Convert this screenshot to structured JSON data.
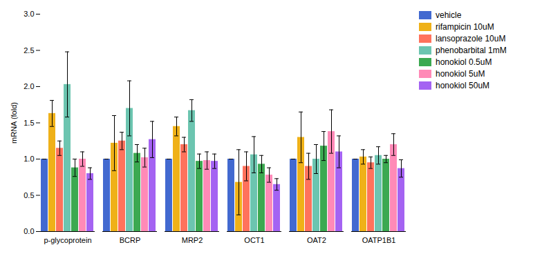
{
  "chart_data": {
    "type": "bar",
    "categories": [
      "p-glycoprotein",
      "BCRP",
      "MRP2",
      "OCT1",
      "OAT2",
      "OATP1B1"
    ],
    "series": [
      {
        "name": "vehicle",
        "values": [
          1.0,
          1.0,
          1.0,
          1.0,
          1.0,
          1.0
        ],
        "errors": [
          0.0,
          0.0,
          0.0,
          0.0,
          0.0,
          0.0
        ]
      },
      {
        "name": "rifampicin 10uM",
        "values": [
          1.63,
          1.22,
          1.45,
          0.68,
          1.3,
          1.03
        ],
        "errors": [
          0.18,
          0.38,
          0.13,
          0.45,
          0.35,
          0.1
        ]
      },
      {
        "name": "lansoprazole 10uM",
        "values": [
          1.15,
          1.25,
          1.2,
          0.9,
          0.9,
          0.95
        ],
        "errors": [
          0.1,
          0.12,
          0.1,
          0.2,
          0.18,
          0.08
        ]
      },
      {
        "name": "phenobarbital 1mM",
        "values": [
          2.03,
          1.7,
          1.67,
          1.06,
          1.0,
          1.05
        ],
        "errors": [
          0.45,
          0.38,
          0.15,
          0.25,
          0.2,
          0.12
        ]
      },
      {
        "name": "honokiol 0.5uM",
        "values": [
          0.88,
          1.08,
          0.97,
          0.93,
          1.18,
          1.0
        ],
        "errors": [
          0.12,
          0.12,
          0.1,
          0.12,
          0.2,
          0.05
        ]
      },
      {
        "name": "honokiol 5uM",
        "values": [
          1.0,
          1.02,
          0.98,
          0.78,
          1.38,
          1.2
        ],
        "errors": [
          0.1,
          0.13,
          0.12,
          0.1,
          0.3,
          0.15
        ]
      },
      {
        "name": "honokiol 50uM",
        "values": [
          0.8,
          1.27,
          0.97,
          0.65,
          1.1,
          0.87
        ],
        "errors": [
          0.08,
          0.25,
          0.1,
          0.08,
          0.22,
          0.12
        ]
      }
    ],
    "ylabel": "mRNA (fold)",
    "ylim": [
      0.0,
      3.0
    ],
    "yticks": [
      {
        "value": 0,
        "label": "0.0"
      },
      0.5,
      {
        "value": 1,
        "label": "1.0"
      },
      1.5,
      {
        "value": 2,
        "label": "2.0"
      },
      2.5,
      {
        "value": 3,
        "label": "3.0"
      }
    ],
    "legend": "right"
  }
}
